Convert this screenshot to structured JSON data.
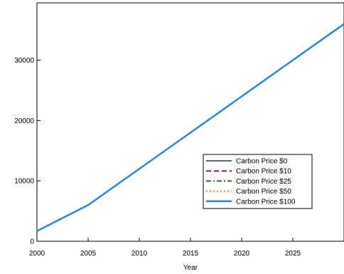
{
  "chart_data": {
    "type": "line",
    "title": "",
    "xlabel": "Year",
    "ylabel": "",
    "xlim": [
      2000,
      2030
    ],
    "ylim": [
      0,
      39500
    ],
    "x_ticks": [
      2000,
      2005,
      2010,
      2015,
      2020,
      2025
    ],
    "y_ticks": [
      0,
      10000,
      20000,
      30000
    ],
    "grid": false,
    "legend_position": "center-right",
    "x": [
      2000,
      2005,
      2010,
      2015,
      2020,
      2025,
      2030
    ],
    "series": [
      {
        "name": "Carbon Price $0",
        "color": "#1f3a6e",
        "dash": "solid",
        "values": [
          1700,
          6000,
          12000,
          18000,
          24000,
          30000,
          36000
        ]
      },
      {
        "name": "Carbon Price $10",
        "color": "#8b1a4a",
        "dash": "dashed",
        "values": [
          1700,
          6000,
          12000,
          18000,
          24000,
          30000,
          36000
        ]
      },
      {
        "name": "Carbon Price $25",
        "color": "#1a7a1a",
        "dash": "dashdot",
        "values": [
          1700,
          6000,
          12000,
          18000,
          24000,
          30000,
          36000
        ]
      },
      {
        "name": "Carbon Price $50",
        "color": "#f28c1e",
        "dash": "dotted",
        "values": [
          1700,
          6000,
          12000,
          18000,
          24000,
          30000,
          36000
        ]
      },
      {
        "name": "Carbon Price $100",
        "color": "#2f86e0",
        "dash": "solid-thick",
        "values": [
          1700,
          6000,
          12000,
          18000,
          24000,
          30000,
          36000
        ]
      }
    ]
  }
}
